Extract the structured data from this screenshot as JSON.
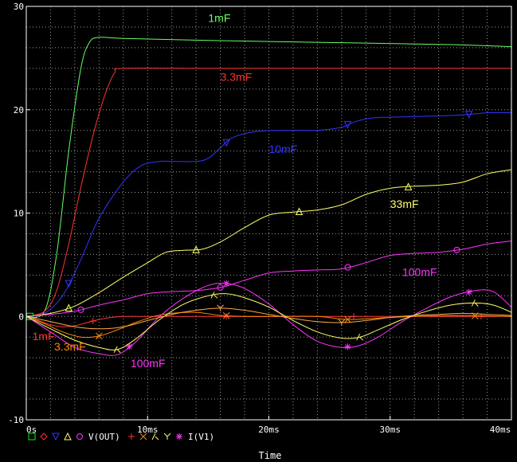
{
  "chart_data": {
    "type": "line",
    "xlabel": "Time",
    "x_unit": "ms",
    "xlim": [
      0,
      40
    ],
    "ylim": [
      -10,
      30
    ],
    "grid": true,
    "background": "#000000",
    "x_ticks": [
      "0s",
      "10ms",
      "20ms",
      "30ms",
      "40ms"
    ],
    "y_ticks": [
      "-10",
      "0",
      "10",
      "20",
      "30"
    ],
    "legend": [
      {
        "text": "V(OUT)",
        "markers": [
          "square",
          "diamond",
          "triangle-down",
          "triangle-up",
          "circle"
        ],
        "colors": [
          "#00ff00",
          "#ff3333",
          "#3333ff",
          "#ffff66",
          "#ff33ff"
        ]
      },
      {
        "text": "I(V1)",
        "markers": [
          "plus",
          "x",
          "lambda",
          "y",
          "asterisk"
        ],
        "colors": [
          "#ff3333",
          "#ff8800",
          "#ffff66",
          "#ffff66",
          "#ff33ff"
        ]
      }
    ],
    "series": [
      {
        "name": "1mF",
        "color": "#66ff66",
        "marker": "square",
        "label_pos": [
          15,
          28.5
        ],
        "x": [
          0,
          1.5,
          2.5,
          3.5,
          4.5,
          5.2,
          6,
          8,
          15,
          25,
          35,
          40
        ],
        "y": [
          0,
          0.5,
          6,
          16,
          24,
          26.5,
          27,
          26.9,
          26.7,
          26.5,
          26.3,
          26.1
        ]
      },
      {
        "name": "3.3mF",
        "color": "#ff3333",
        "marker": "diamond",
        "label_pos": [
          16,
          22.8
        ],
        "x": [
          0,
          1.5,
          2.5,
          3.5,
          4.5,
          5.5,
          6.5,
          7.3,
          8,
          15,
          25,
          40
        ],
        "y": [
          0,
          0.5,
          2.5,
          7,
          12.5,
          17.5,
          21.5,
          23.6,
          24,
          24,
          24,
          24
        ]
      },
      {
        "name": "10mF",
        "color": "#3333ff",
        "marker": "triangle-down",
        "label_pos": [
          20,
          15.8
        ],
        "x": [
          0,
          1.5,
          3,
          4.5,
          6,
          8,
          9.5,
          11,
          12,
          14,
          15,
          16,
          17,
          19,
          22,
          24,
          26,
          27,
          28.5,
          31,
          34,
          36,
          38,
          40
        ],
        "y": [
          0,
          0.3,
          2,
          5.5,
          9.5,
          13,
          14.6,
          15,
          15,
          15,
          15.3,
          16.3,
          17.3,
          17.9,
          18,
          18,
          18.3,
          18.8,
          19.2,
          19.3,
          19.4,
          19.5,
          19.7,
          19.7
        ],
        "marker_x": [
          3.5,
          16.5,
          26.5,
          36.5
        ]
      },
      {
        "name": "33mF",
        "color": "#ffff66",
        "marker": "triangle-up",
        "label_pos": [
          30,
          10.5
        ],
        "x": [
          0,
          2,
          4,
          6,
          8,
          10,
          11.5,
          13,
          14.5,
          16,
          18,
          20,
          22,
          24,
          26,
          28,
          30,
          32,
          34,
          36,
          38,
          40
        ],
        "y": [
          0,
          0.3,
          1,
          2.3,
          3.8,
          5.2,
          6.2,
          6.4,
          6.5,
          7.2,
          8.6,
          9.8,
          10.1,
          10.3,
          10.8,
          11.8,
          12.4,
          12.6,
          12.7,
          13,
          13.8,
          14.2
        ],
        "marker_x": [
          3.5,
          14,
          22.5,
          31.5
        ]
      },
      {
        "name": "100mF",
        "color": "#ff33ff",
        "marker": "circle",
        "label_pos": [
          31,
          3.9
        ],
        "x": [
          0,
          2,
          4,
          6,
          8,
          10,
          12,
          14,
          16,
          18,
          20,
          22,
          24,
          26,
          28,
          30,
          32,
          34,
          36,
          38,
          40
        ],
        "y": [
          0,
          0.2,
          0.5,
          1.1,
          1.6,
          2.2,
          2.4,
          2.5,
          2.8,
          3.5,
          4.2,
          4.4,
          4.5,
          4.6,
          5.2,
          5.9,
          6.1,
          6.2,
          6.5,
          7,
          7.3
        ],
        "marker_x": [
          4.5,
          16,
          26.5,
          35.5
        ]
      },
      {
        "name": "1mF",
        "color": "#ff3333",
        "marker": "plus",
        "label_pos": [
          0.5,
          -2.3
        ],
        "x": [
          0,
          1,
          2,
          3,
          4,
          5,
          6,
          7,
          8,
          10,
          12,
          14,
          16,
          18,
          20,
          25,
          30,
          35,
          40
        ],
        "y": [
          0,
          -0.4,
          -0.8,
          -1,
          -0.9,
          -0.6,
          -0.3,
          -0.1,
          0,
          0,
          0,
          0,
          0,
          0,
          0,
          0,
          0,
          0,
          0
        ],
        "marker_x": [
          5.5,
          16.5,
          27,
          37.5
        ]
      },
      {
        "name": "3.3mF",
        "color": "#ff8800",
        "marker": "x",
        "label_pos": [
          2.3,
          -3.3
        ],
        "x": [
          0,
          1.5,
          3,
          4.5,
          6,
          7.5,
          9,
          10.5,
          12,
          14,
          16,
          18,
          20,
          24,
          26.5,
          30,
          35,
          40
        ],
        "y": [
          0,
          -0.7,
          -1.5,
          -2,
          -1.9,
          -1.3,
          -0.6,
          0,
          0.3,
          0.4,
          0.1,
          0,
          0,
          0,
          -0.3,
          -0.1,
          0.1,
          0
        ],
        "marker_x": [
          6,
          16.5,
          26.5,
          37
        ]
      },
      {
        "name": "100mF",
        "color": "#ff33ff",
        "marker": "asterisk",
        "label_pos": [
          8.6,
          -4.9
        ],
        "x": [
          0,
          2,
          4,
          6,
          7.5,
          9,
          11,
          13,
          15,
          16.5,
          18,
          20,
          22,
          24,
          26,
          27.5,
          29,
          31,
          33,
          35,
          37,
          38.5,
          40
        ],
        "y": [
          0,
          -1.5,
          -3,
          -3.6,
          -3.7,
          -2.5,
          0,
          1.8,
          3,
          3.2,
          2.7,
          1.2,
          -0.8,
          -2.4,
          -3,
          -2.8,
          -2,
          -0.5,
          0.8,
          1.9,
          2.5,
          2.4,
          0.9
        ],
        "marker_x": [
          8.5,
          16.5,
          26.5,
          36.5
        ]
      },
      {
        "name": "",
        "color": "#ffff66",
        "marker": "lambda",
        "x": [
          0,
          2,
          4,
          6,
          7.5,
          9,
          11,
          13,
          15,
          16.5,
          18,
          20,
          22,
          24,
          26,
          27.5,
          29,
          31,
          33,
          35,
          37,
          38.5,
          40
        ],
        "y": [
          0,
          -1.2,
          -2.3,
          -3,
          -3.2,
          -2.2,
          -0.3,
          1.2,
          2,
          2.2,
          1.8,
          0.9,
          -0.4,
          -1.5,
          -2.1,
          -2,
          -1.3,
          -0.3,
          0.5,
          1.1,
          1.3,
          1.1,
          0.4
        ],
        "marker_x": [
          7.5,
          15.5,
          27.5,
          37
        ]
      },
      {
        "name": "",
        "color": "#ffaa44",
        "marker": "y",
        "x": [
          0,
          2,
          4,
          6,
          8,
          10,
          12,
          14,
          16,
          18,
          20,
          22,
          24,
          26,
          28,
          30,
          32,
          34,
          36,
          38,
          40
        ],
        "y": [
          0,
          -0.5,
          -1,
          -1.2,
          -1,
          -0.4,
          0.2,
          0.6,
          0.8,
          0.6,
          0.2,
          -0.2,
          -0.5,
          -0.6,
          -0.4,
          -0.1,
          0.1,
          0.2,
          0.3,
          0.2,
          0.1
        ],
        "marker_x": [
          16,
          26
        ]
      }
    ]
  }
}
